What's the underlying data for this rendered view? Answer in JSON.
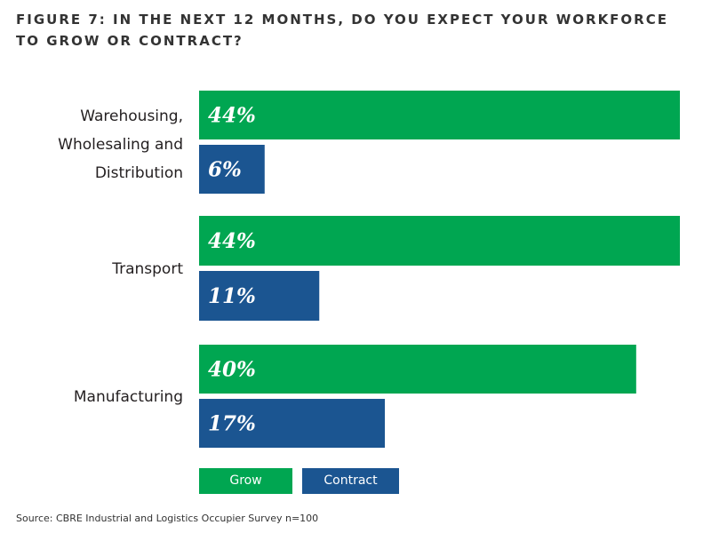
{
  "chart_data": {
    "type": "bar",
    "orientation": "horizontal",
    "title": "FIGURE 7: IN THE NEXT 12 MONTHS, DO YOU EXPECT YOUR WORKFORCE TO GROW OR CONTRACT?",
    "categories": [
      "Warehousing, Wholesaling and Distribution",
      "Transport",
      "Manufacturing"
    ],
    "category_lines": [
      [
        "Warehousing,",
        "Wholesaling and",
        "Distribution"
      ],
      [
        "Transport"
      ],
      [
        "Manufacturing"
      ]
    ],
    "series": [
      {
        "name": "Grow",
        "values": [
          44,
          44,
          40
        ],
        "labels": [
          "44%",
          "44%",
          "40%"
        ],
        "color": "#00a651"
      },
      {
        "name": "Contract",
        "values": [
          6,
          11,
          17
        ],
        "labels": [
          "6%",
          "11%",
          "17%"
        ],
        "color": "#1b5591"
      }
    ],
    "unit": "%",
    "legend_placement": "bottom-left",
    "grid": false
  },
  "source": "Source: CBRE Industrial and Logistics Occupier Survey n=100"
}
